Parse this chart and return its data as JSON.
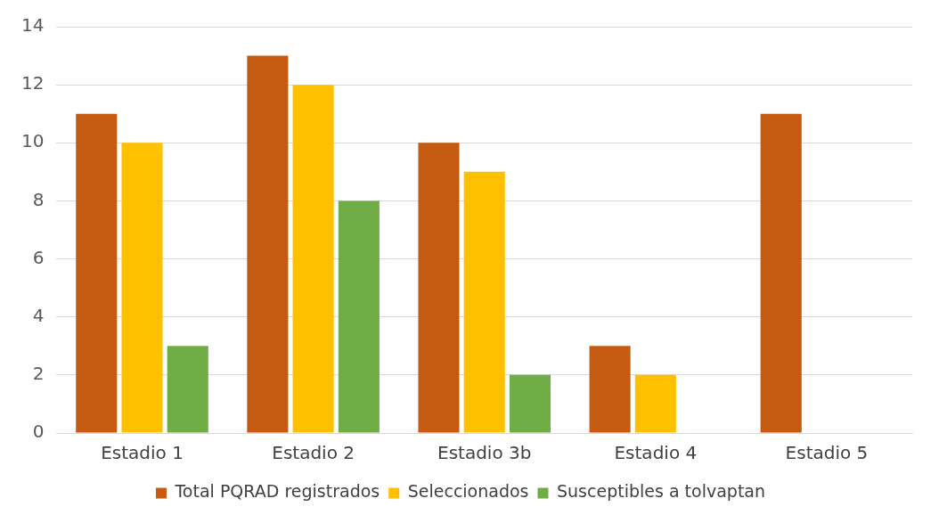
{
  "chart_data": {
    "type": "bar",
    "categories": [
      "Estadio 1",
      "Estadio 2",
      "Estadio 3b",
      "Estadio 4",
      "Estadio 5"
    ],
    "series": [
      {
        "name": "Total PQRAD registrados",
        "color": "#c55a11",
        "values": [
          11,
          13,
          10,
          3,
          11
        ]
      },
      {
        "name": "Seleccionados",
        "color": "#ffc000",
        "values": [
          10,
          12,
          9,
          2,
          null
        ]
      },
      {
        "name": "Susceptibles a tolvaptan",
        "color": "#70ad47",
        "values": [
          3,
          8,
          2,
          null,
          null
        ]
      }
    ],
    "ylim": [
      0,
      14
    ],
    "yticks": [
      0,
      2,
      4,
      6,
      8,
      10,
      12,
      14
    ],
    "grid": "y",
    "legend": "bottom"
  }
}
